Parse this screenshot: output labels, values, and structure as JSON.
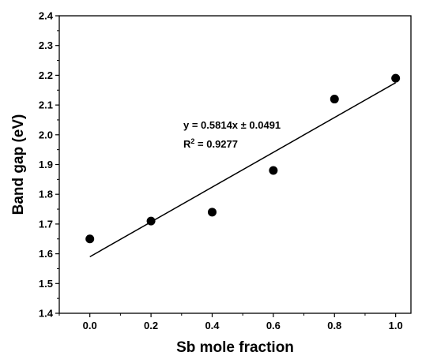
{
  "chart_data": {
    "type": "scatter",
    "title": "",
    "xlabel": "Sb mole fraction",
    "ylabel": "Band gap (eV)",
    "xlim": [
      -0.1,
      1.05
    ],
    "ylim": [
      1.4,
      2.4
    ],
    "x_ticks": [
      "0.0",
      "0.2",
      "0.4",
      "0.6",
      "0.8",
      "1.0"
    ],
    "y_ticks": [
      "1.4",
      "1.5",
      "1.6",
      "1.7",
      "1.8",
      "1.9",
      "2.0",
      "2.1",
      "2.2",
      "2.3",
      "2.4"
    ],
    "grid": false,
    "legend": "none",
    "series": [
      {
        "x": [
          0.0,
          0.2,
          0.4,
          0.6,
          0.8,
          1.0
        ],
        "y": [
          1.65,
          1.71,
          1.74,
          1.88,
          2.12,
          2.19
        ]
      }
    ],
    "fit_line": {
      "x": [
        0.0,
        1.0
      ],
      "y": [
        1.59,
        2.175
      ]
    },
    "annotations": {
      "equation": "y = 0.5814x ± 0.0491",
      "r2_label": "R",
      "r2_sup": "2",
      "r2_value": " = 0.9277"
    },
    "colors": {
      "marker": "#000000",
      "line": "#000000",
      "axis": "#000000"
    }
  }
}
